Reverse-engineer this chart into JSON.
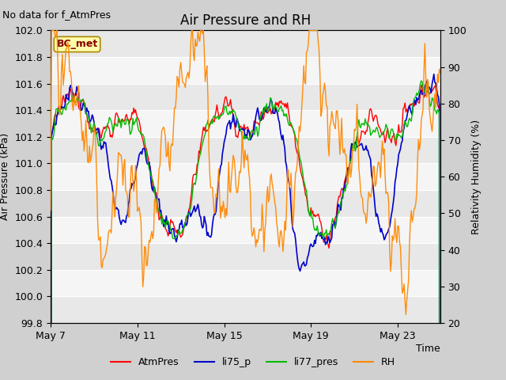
{
  "title": "Air Pressure and RH",
  "xlabel": "Time",
  "ylabel_left": "Air Pressure (kPa)",
  "ylabel_right": "Relativity Humidity (%)",
  "ylim_left": [
    99.8,
    102.0
  ],
  "ylim_right": [
    20,
    100
  ],
  "yticks_left": [
    99.8,
    100.0,
    100.2,
    100.4,
    100.6,
    100.8,
    101.0,
    101.2,
    101.4,
    101.6,
    101.8,
    102.0
  ],
  "yticks_right": [
    20,
    30,
    40,
    50,
    60,
    70,
    80,
    90,
    100
  ],
  "xtick_labels": [
    "May 7",
    "May 11",
    "May 15",
    "May 19",
    "May 23"
  ],
  "no_data_text": "No data for f_AtmPres",
  "bc_met_label": "BC_met",
  "legend_labels": [
    "AtmPres",
    "li75_p",
    "li77_pres",
    "RH"
  ],
  "legend_colors": [
    "#ff0000",
    "#0000cc",
    "#00bb00",
    "#ff8800"
  ],
  "title_fontsize": 12,
  "axis_label_fontsize": 9,
  "tick_fontsize": 9,
  "note_fontsize": 9,
  "n_points": 432,
  "band_colors": [
    "#e8e8e8",
    "#f5f5f5"
  ],
  "fig_bg": "#d0d0d0",
  "plot_bg": "#e8e8e8"
}
